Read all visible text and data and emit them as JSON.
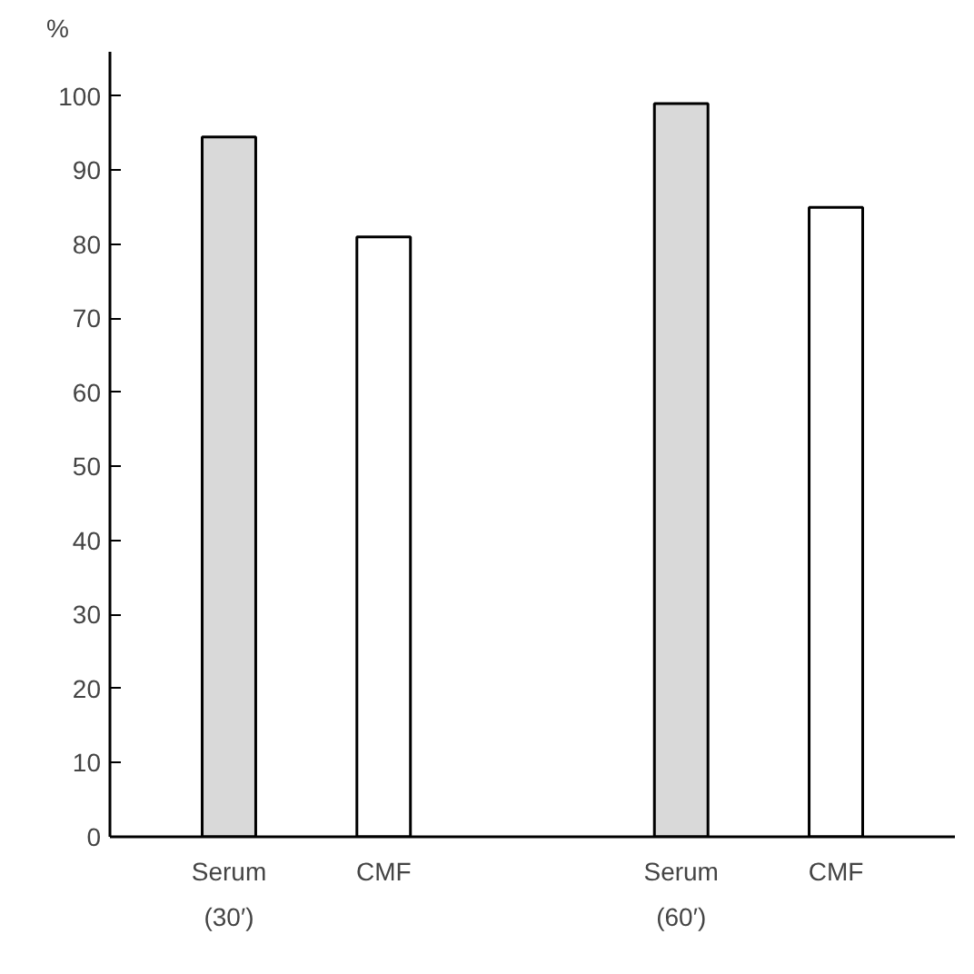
{
  "chart_data": {
    "type": "bar",
    "ylabel": "%",
    "categories": [
      "Serum",
      "CMF",
      "Serum",
      "CMF"
    ],
    "values": [
      94.5,
      81,
      99,
      85
    ],
    "colors": [
      "#d9d9d9",
      "#ffffff",
      "#d9d9d9",
      "#ffffff"
    ],
    "ylim": [
      0,
      106
    ],
    "yticks": [
      0,
      10,
      20,
      30,
      40,
      50,
      60,
      70,
      80,
      90,
      100
    ],
    "grid": false,
    "annotations": [
      "(30′)",
      "(60′)"
    ]
  }
}
